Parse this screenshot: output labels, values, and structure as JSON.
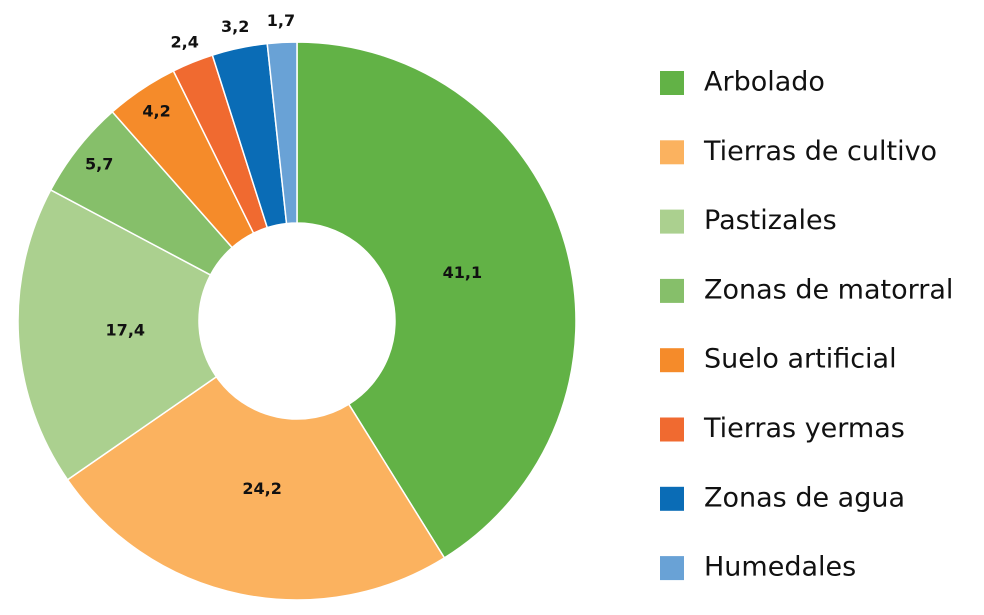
{
  "chart_data": {
    "type": "pie",
    "donut": true,
    "categories": [
      "Arbolado",
      "Tierras de cultivo",
      "Pastizales",
      "Zonas de matorral",
      "Suelo artificial",
      "Tierras yermas",
      "Zonas de agua",
      "Humedales"
    ],
    "values": [
      41.1,
      24.2,
      17.4,
      5.7,
      4.2,
      2.4,
      3.2,
      1.7
    ],
    "value_labels": [
      "41,1",
      "24,2",
      "17,4",
      "5,7",
      "4,2",
      "2,4",
      "3,2",
      "1,7"
    ],
    "colors": [
      "#62b246",
      "#fbb25f",
      "#abd08f",
      "#86bf6a",
      "#f58b2a",
      "#f06a30",
      "#0a6cb6",
      "#69a2d6"
    ],
    "legend": "right"
  }
}
